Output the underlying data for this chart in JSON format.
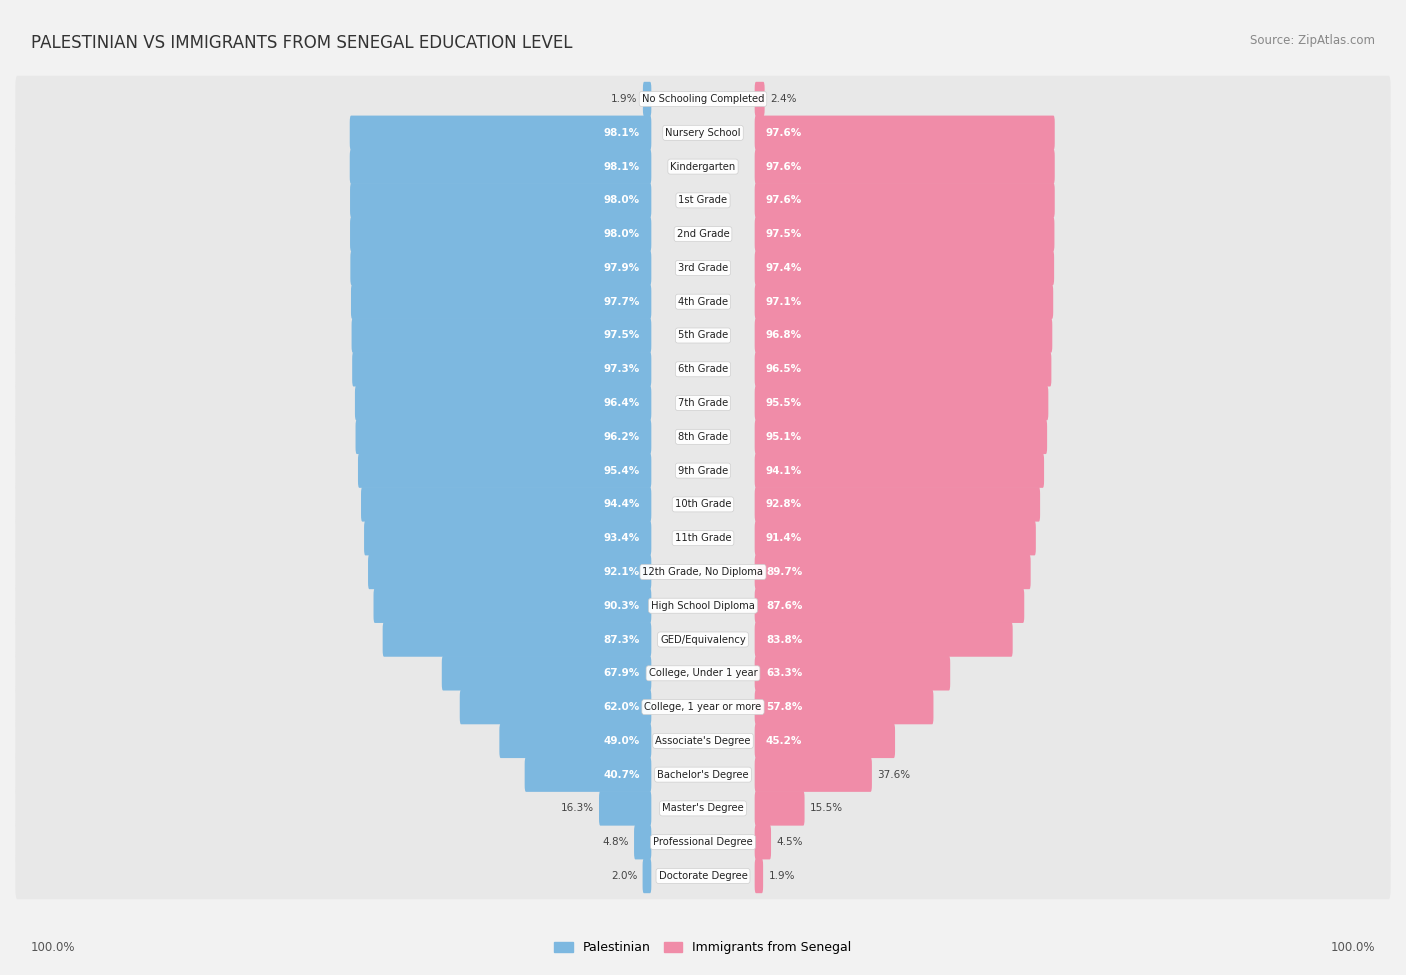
{
  "title": "PALESTINIAN VS IMMIGRANTS FROM SENEGAL EDUCATION LEVEL",
  "source": "Source: ZipAtlas.com",
  "categories": [
    "No Schooling Completed",
    "Nursery School",
    "Kindergarten",
    "1st Grade",
    "2nd Grade",
    "3rd Grade",
    "4th Grade",
    "5th Grade",
    "6th Grade",
    "7th Grade",
    "8th Grade",
    "9th Grade",
    "10th Grade",
    "11th Grade",
    "12th Grade, No Diploma",
    "High School Diploma",
    "GED/Equivalency",
    "College, Under 1 year",
    "College, 1 year or more",
    "Associate's Degree",
    "Bachelor's Degree",
    "Master's Degree",
    "Professional Degree",
    "Doctorate Degree"
  ],
  "palestinian": [
    1.9,
    98.1,
    98.1,
    98.0,
    98.0,
    97.9,
    97.7,
    97.5,
    97.3,
    96.4,
    96.2,
    95.4,
    94.4,
    93.4,
    92.1,
    90.3,
    87.3,
    67.9,
    62.0,
    49.0,
    40.7,
    16.3,
    4.8,
    2.0
  ],
  "senegal": [
    2.4,
    97.6,
    97.6,
    97.6,
    97.5,
    97.4,
    97.1,
    96.8,
    96.5,
    95.5,
    95.1,
    94.1,
    92.8,
    91.4,
    89.7,
    87.6,
    83.8,
    63.3,
    57.8,
    45.2,
    37.6,
    15.5,
    4.5,
    1.9
  ],
  "pal_color": "#7db8e0",
  "sen_color": "#f08ca8",
  "bg_color": "#f2f2f2",
  "row_bg_color": "#e8e8e8",
  "legend_pal": "Palestinian",
  "legend_sen": "Immigrants from Senegal"
}
